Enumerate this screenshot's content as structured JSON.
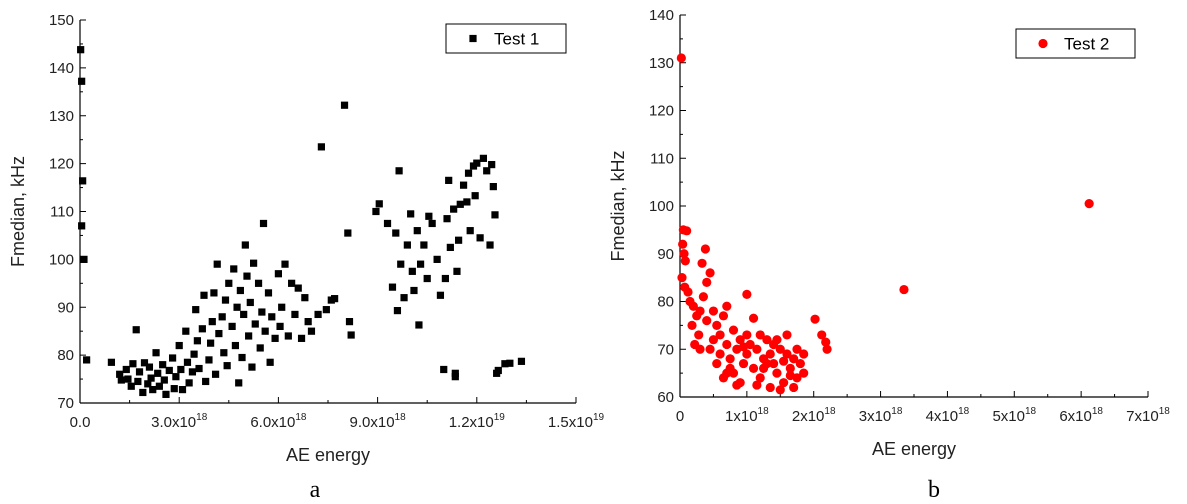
{
  "chart_data": [
    {
      "type": "scatter",
      "panel_label": "a",
      "xlabel": "AE energy",
      "ylabel": "Fmedian, kHz",
      "xlim": [
        0,
        1.5e+19
      ],
      "ylim": [
        70,
        150
      ],
      "xticks": [
        {
          "value": 0,
          "mantissa": "0.0",
          "exp": ""
        },
        {
          "value": 3e+18,
          "mantissa": "3.0x10",
          "exp": "18"
        },
        {
          "value": 6e+18,
          "mantissa": "6.0x10",
          "exp": "18"
        },
        {
          "value": 9e+18,
          "mantissa": "9.0x10",
          "exp": "18"
        },
        {
          "value": 1.2e+19,
          "mantissa": "1.2x10",
          "exp": "19"
        },
        {
          "value": 1.5e+19,
          "mantissa": "1.5x10",
          "exp": "19"
        }
      ],
      "yticks": [
        70,
        80,
        90,
        100,
        110,
        120,
        130,
        140,
        150
      ],
      "legend_position": "top-right",
      "marker": "square",
      "color": "#000000",
      "series": [
        {
          "name": "Test 1",
          "x_scale": 1e+18,
          "points": [
            [
              0.02,
              143.8
            ],
            [
              0.05,
              137.2
            ],
            [
              0.08,
              116.4
            ],
            [
              0.05,
              107
            ],
            [
              0.12,
              100
            ],
            [
              0.2,
              79
            ],
            [
              0.95,
              78.5
            ],
            [
              1.2,
              76
            ],
            [
              1.25,
              74.8
            ],
            [
              1.4,
              77
            ],
            [
              1.45,
              75
            ],
            [
              1.55,
              73.5
            ],
            [
              1.6,
              78.2
            ],
            [
              1.7,
              85.3
            ],
            [
              1.75,
              74.5
            ],
            [
              1.8,
              76.5
            ],
            [
              1.9,
              72.2
            ],
            [
              1.95,
              78.4
            ],
            [
              2.05,
              74
            ],
            [
              2.1,
              77.5
            ],
            [
              2.15,
              75.2
            ],
            [
              2.2,
              72.8
            ],
            [
              2.3,
              80.5
            ],
            [
              2.35,
              76.2
            ],
            [
              2.4,
              73.5
            ],
            [
              2.5,
              78
            ],
            [
              2.55,
              74.8
            ],
            [
              2.6,
              71.8
            ],
            [
              2.7,
              76.8
            ],
            [
              2.8,
              79.4
            ],
            [
              2.85,
              73
            ],
            [
              2.9,
              75.5
            ],
            [
              3.0,
              82
            ],
            [
              3.05,
              77
            ],
            [
              3.1,
              72.8
            ],
            [
              3.2,
              85
            ],
            [
              3.25,
              78.5
            ],
            [
              3.3,
              74.2
            ],
            [
              3.4,
              76.5
            ],
            [
              3.45,
              80.2
            ],
            [
              3.5,
              89.5
            ],
            [
              3.55,
              83
            ],
            [
              3.6,
              77.2
            ],
            [
              3.7,
              85.5
            ],
            [
              3.75,
              92.5
            ],
            [
              3.8,
              74.5
            ],
            [
              3.9,
              79
            ],
            [
              3.95,
              82.5
            ],
            [
              4.0,
              87
            ],
            [
              4.05,
              93
            ],
            [
              4.1,
              76
            ],
            [
              4.15,
              99
            ],
            [
              4.2,
              84.5
            ],
            [
              4.3,
              88
            ],
            [
              4.35,
              80.5
            ],
            [
              4.4,
              91.5
            ],
            [
              4.45,
              77.8
            ],
            [
              4.5,
              95
            ],
            [
              4.6,
              86
            ],
            [
              4.65,
              98
            ],
            [
              4.7,
              82
            ],
            [
              4.75,
              90
            ],
            [
              4.8,
              74.2
            ],
            [
              4.85,
              93.5
            ],
            [
              4.9,
              79.5
            ],
            [
              4.95,
              88.5
            ],
            [
              5.0,
              103
            ],
            [
              5.05,
              96.5
            ],
            [
              5.1,
              84
            ],
            [
              5.15,
              91
            ],
            [
              5.2,
              77.5
            ],
            [
              5.25,
              99.2
            ],
            [
              5.3,
              86.5
            ],
            [
              5.4,
              95
            ],
            [
              5.45,
              81.5
            ],
            [
              5.5,
              89
            ],
            [
              5.55,
              107.5
            ],
            [
              5.6,
              85
            ],
            [
              5.7,
              93
            ],
            [
              5.75,
              78.5
            ],
            [
              5.8,
              88
            ],
            [
              5.9,
              83.5
            ],
            [
              6.0,
              97
            ],
            [
              6.05,
              86
            ],
            [
              6.1,
              90
            ],
            [
              6.2,
              99
            ],
            [
              6.3,
              84
            ],
            [
              6.4,
              95
            ],
            [
              6.5,
              88.5
            ],
            [
              6.6,
              94
            ],
            [
              6.7,
              83.5
            ],
            [
              6.8,
              92
            ],
            [
              6.9,
              87
            ],
            [
              7.0,
              85
            ],
            [
              7.2,
              88.5
            ],
            [
              7.3,
              123.5
            ],
            [
              7.45,
              89.5
            ],
            [
              7.6,
              91.5
            ],
            [
              7.7,
              91.8
            ],
            [
              8.0,
              132.2
            ],
            [
              8.1,
              105.5
            ],
            [
              8.15,
              87
            ],
            [
              8.2,
              84.2
            ],
            [
              8.95,
              110
            ],
            [
              9.05,
              111.6
            ],
            [
              9.3,
              107.5
            ],
            [
              9.45,
              94.2
            ],
            [
              9.55,
              105.5
            ],
            [
              9.6,
              89.3
            ],
            [
              9.65,
              118.5
            ],
            [
              9.7,
              99
            ],
            [
              9.8,
              92
            ],
            [
              9.9,
              103
            ],
            [
              10.0,
              109.5
            ],
            [
              10.05,
              97.5
            ],
            [
              10.1,
              93.5
            ],
            [
              10.2,
              106
            ],
            [
              10.25,
              86.3
            ],
            [
              10.3,
              99
            ],
            [
              10.4,
              103
            ],
            [
              10.5,
              96
            ],
            [
              10.55,
              109
            ],
            [
              10.65,
              107.5
            ],
            [
              10.8,
              100
            ],
            [
              10.9,
              92.5
            ],
            [
              11.0,
              77
            ],
            [
              11.05,
              96
            ],
            [
              11.1,
              108.5
            ],
            [
              11.15,
              116.5
            ],
            [
              11.2,
              102.5
            ],
            [
              11.3,
              110.5
            ],
            [
              11.35,
              75.5
            ],
            [
              11.35,
              76.2
            ],
            [
              11.4,
              97.5
            ],
            [
              11.45,
              104
            ],
            [
              11.5,
              111.5
            ],
            [
              11.6,
              115.5
            ],
            [
              11.7,
              112
            ],
            [
              11.75,
              118
            ],
            [
              11.8,
              106
            ],
            [
              11.9,
              119.5
            ],
            [
              11.95,
              113.3
            ],
            [
              12.0,
              120.1
            ],
            [
              12.1,
              104.5
            ],
            [
              12.2,
              121.1
            ],
            [
              12.3,
              118.5
            ],
            [
              12.4,
              103
            ],
            [
              12.45,
              119.8
            ],
            [
              12.5,
              115.2
            ],
            [
              12.55,
              109.3
            ],
            [
              12.6,
              76.2
            ],
            [
              12.65,
              76.8
            ],
            [
              12.85,
              78.2
            ],
            [
              13.0,
              78.3
            ],
            [
              13.35,
              78.7
            ]
          ]
        }
      ]
    },
    {
      "type": "scatter",
      "panel_label": "b",
      "xlabel": "AE energy",
      "ylabel": "Fmedian, kHz",
      "xlim": [
        0,
        7e+18
      ],
      "ylim": [
        60,
        140
      ],
      "xticks": [
        {
          "value": 0,
          "mantissa": "0",
          "exp": ""
        },
        {
          "value": 1e+18,
          "mantissa": "1x10",
          "exp": "18"
        },
        {
          "value": 2e+18,
          "mantissa": "2x10",
          "exp": "18"
        },
        {
          "value": 3e+18,
          "mantissa": "3x10",
          "exp": "18"
        },
        {
          "value": 4e+18,
          "mantissa": "4x10",
          "exp": "18"
        },
        {
          "value": 5e+18,
          "mantissa": "5x10",
          "exp": "18"
        },
        {
          "value": 6e+18,
          "mantissa": "6x10",
          "exp": "18"
        },
        {
          "value": 7e+18,
          "mantissa": "7x10",
          "exp": "18"
        }
      ],
      "yticks": [
        60,
        70,
        80,
        90,
        100,
        110,
        120,
        130,
        140
      ],
      "legend_position": "top-right",
      "marker": "circle",
      "color": "#ff0000",
      "series": [
        {
          "name": "Test 2",
          "x_scale": 1e+18,
          "points": [
            [
              0.02,
              131
            ],
            [
              0.05,
              95
            ],
            [
              0.1,
              94.8
            ],
            [
              0.04,
              92
            ],
            [
              0.06,
              90
            ],
            [
              0.08,
              88.5
            ],
            [
              0.03,
              85
            ],
            [
              0.07,
              83
            ],
            [
              0.12,
              82
            ],
            [
              0.15,
              80
            ],
            [
              0.2,
              79
            ],
            [
              0.25,
              77
            ],
            [
              0.18,
              75
            ],
            [
              0.3,
              78
            ],
            [
              0.35,
              81
            ],
            [
              0.4,
              84
            ],
            [
              0.45,
              86
            ],
            [
              0.33,
              88
            ],
            [
              0.38,
              91
            ],
            [
              0.28,
              73
            ],
            [
              0.22,
              71
            ],
            [
              0.3,
              70
            ],
            [
              0.4,
              76
            ],
            [
              0.5,
              78
            ],
            [
              0.55,
              75
            ],
            [
              0.6,
              73
            ],
            [
              0.65,
              77
            ],
            [
              0.7,
              79
            ],
            [
              0.5,
              72
            ],
            [
              0.45,
              70
            ],
            [
              0.6,
              69
            ],
            [
              0.7,
              71
            ],
            [
              0.75,
              68
            ],
            [
              0.8,
              74
            ],
            [
              0.85,
              70
            ],
            [
              0.9,
              72
            ],
            [
              0.95,
              67
            ],
            [
              1.0,
              69
            ],
            [
              0.8,
              65
            ],
            [
              0.9,
              63
            ],
            [
              1.0,
              81.5
            ],
            [
              1.05,
              71
            ],
            [
              1.1,
              66
            ],
            [
              1.15,
              70
            ],
            [
              1.2,
              64
            ],
            [
              1.25,
              68
            ],
            [
              1.3,
              72
            ],
            [
              1.35,
              62
            ],
            [
              1.4,
              67
            ],
            [
              1.45,
              65
            ],
            [
              1.5,
              70
            ],
            [
              1.55,
              63
            ],
            [
              1.6,
              69
            ],
            [
              1.65,
              66
            ],
            [
              1.7,
              68
            ],
            [
              1.75,
              64
            ],
            [
              1.8,
              67
            ],
            [
              1.85,
              69
            ],
            [
              1.5,
              61.5
            ],
            [
              1.7,
              62
            ],
            [
              1.1,
              76.5
            ],
            [
              0.65,
              64
            ],
            [
              0.75,
              66
            ],
            [
              0.85,
              62.5
            ],
            [
              0.55,
              67
            ],
            [
              1.2,
              73
            ],
            [
              1.3,
              67
            ],
            [
              1.0,
              73
            ],
            [
              1.4,
              71
            ],
            [
              1.6,
              73
            ],
            [
              0.7,
              65
            ],
            [
              0.95,
              70.5
            ],
            [
              1.15,
              62.5
            ],
            [
              1.25,
              66
            ],
            [
              1.35,
              69
            ],
            [
              1.45,
              72
            ],
            [
              1.55,
              67.5
            ],
            [
              1.65,
              64.5
            ],
            [
              1.75,
              70
            ],
            [
              1.85,
              65
            ],
            [
              2.02,
              76.3
            ],
            [
              2.12,
              73
            ],
            [
              2.18,
              71.5
            ],
            [
              2.2,
              70
            ],
            [
              3.35,
              82.5
            ],
            [
              6.12,
              100.5
            ]
          ]
        }
      ]
    },
    {
      "captions": [
        "a",
        "b"
      ]
    }
  ]
}
